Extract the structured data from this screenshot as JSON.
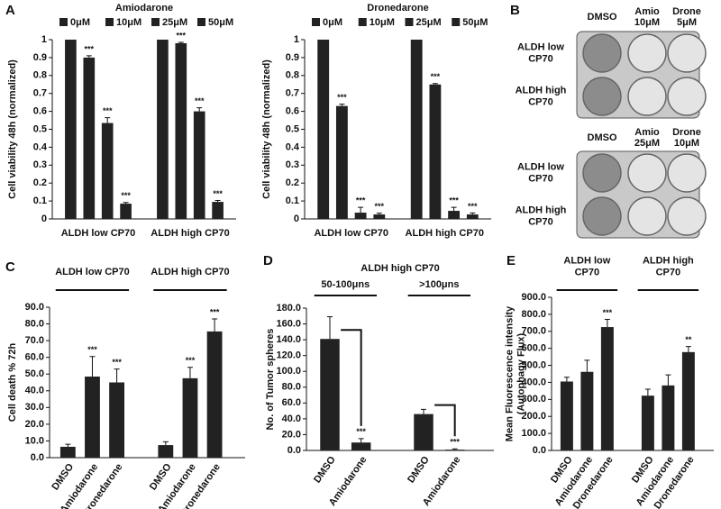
{
  "chart_data": [
    {
      "type": "bar",
      "panel": "A",
      "title": "Amiodarone",
      "y_label": "Cell viability 48h (normalized)",
      "categories": [
        "ALDH low CP70",
        "ALDH high CP70"
      ],
      "series": [
        {
          "name": "0μM",
          "color": "#222222",
          "values": [
            1,
            1
          ],
          "errors": [
            null,
            null
          ],
          "annotations": [
            null,
            null
          ]
        },
        {
          "name": "10μM",
          "color": "#222222",
          "values": [
            0.9,
            0.98
          ],
          "errors": [
            0.01,
            0.005
          ],
          "annotations": [
            "***",
            "***"
          ]
        },
        {
          "name": "25μM",
          "color": "#222222",
          "values": [
            0.535,
            0.6
          ],
          "errors": [
            0.03,
            0.02
          ],
          "annotations": [
            "***",
            "***"
          ]
        },
        {
          "name": "50μM",
          "color": "#222222",
          "values": [
            0.085,
            0.095
          ],
          "errors": [
            0.007,
            0.008
          ],
          "annotations": [
            "***",
            "***"
          ]
        }
      ],
      "ylim": [
        0,
        1
      ],
      "yticks": [
        0,
        0.1,
        0.2,
        0.3,
        0.4,
        0.5,
        0.6,
        0.7,
        0.8,
        0.9,
        1
      ]
    },
    {
      "type": "bar",
      "title": "Dronedarone",
      "y_label": "Cell viability 48h (normalized)",
      "categories": [
        "ALDH low CP70",
        "ALDH high CP70"
      ],
      "series": [
        {
          "name": "0μM",
          "color": "#222222",
          "values": [
            1,
            1
          ],
          "errors": [
            null,
            null
          ],
          "annotations": [
            null,
            null
          ]
        },
        {
          "name": "10μM",
          "color": "#222222",
          "values": [
            0.63,
            0.75
          ],
          "errors": [
            0.01,
            0.005
          ],
          "annotations": [
            "***",
            "***"
          ]
        },
        {
          "name": "25μM",
          "color": "#222222",
          "values": [
            0.035,
            0.045
          ],
          "errors": [
            0.03,
            0.02
          ],
          "annotations": [
            "***",
            "***"
          ]
        },
        {
          "name": "50μM",
          "color": "#222222",
          "values": [
            0.025,
            0.025
          ],
          "errors": [
            0.007,
            0.008
          ],
          "annotations": [
            "***",
            "***"
          ]
        }
      ],
      "ylim": [
        0,
        1
      ],
      "yticks": [
        0,
        0.1,
        0.2,
        0.3,
        0.4,
        0.5,
        0.6,
        0.7,
        0.8,
        0.9,
        1
      ]
    },
    {
      "type": "bar",
      "panel": "C",
      "y_label": "Cell death % 72h",
      "color": "#222222",
      "groups": [
        {
          "label": "ALDH low CP70",
          "categories": [
            "DMSO",
            "Amiodarone",
            "Dronedarone"
          ],
          "values": [
            6.5,
            48.5,
            45
          ],
          "errors": [
            1.5,
            12,
            8
          ],
          "annotations": [
            null,
            "***",
            "***"
          ]
        },
        {
          "label": "ALDH high CP70",
          "categories": [
            "DMSO",
            "Amiodarone",
            "Dronedarone"
          ],
          "values": [
            7.5,
            47.5,
            75.5
          ],
          "errors": [
            2,
            6.5,
            7.5
          ],
          "annotations": [
            null,
            "***",
            "***"
          ]
        }
      ],
      "ylim": [
        0,
        90
      ],
      "yticks": [
        {
          "value": 0,
          "label": "0.0"
        },
        {
          "value": 10,
          "label": "10.0"
        },
        {
          "value": 20,
          "label": "20.0"
        },
        {
          "value": 30,
          "label": "30.0"
        },
        {
          "value": 40,
          "label": "40.0"
        },
        {
          "value": 50,
          "label": "50.0"
        },
        {
          "value": 60,
          "label": "60.0"
        },
        {
          "value": 70,
          "label": "70.0"
        },
        {
          "value": 80,
          "label": "80.0"
        },
        {
          "value": 90,
          "label": "90.0"
        }
      ]
    },
    {
      "type": "bar",
      "panel": "D",
      "title": "ALDH high CP70",
      "y_label": "No. of Tumor spheres",
      "color": "#222222",
      "brackets": true,
      "groups": [
        {
          "label": "50-100μns",
          "categories": [
            "DMSO",
            "Amiodarone"
          ],
          "values": [
            141,
            10
          ],
          "errors": [
            28,
            5
          ],
          "annotations": [
            null,
            "***"
          ]
        },
        {
          "label": ">100μns",
          "categories": [
            "DMSO",
            "Amiodarone"
          ],
          "values": [
            46,
            1
          ],
          "errors": [
            6,
            1
          ],
          "annotations": [
            null,
            "***"
          ]
        }
      ],
      "ylim": [
        0,
        180
      ],
      "yticks": [
        {
          "value": 0,
          "label": "0.0"
        },
        {
          "value": 20,
          "label": "20.0"
        },
        {
          "value": 40,
          "label": "40.0"
        },
        {
          "value": 60,
          "label": "60.0"
        },
        {
          "value": 80,
          "label": "80.0"
        },
        {
          "value": 100,
          "label": "100.0"
        },
        {
          "value": 120,
          "label": "120.0"
        },
        {
          "value": 140,
          "label": "140.0"
        },
        {
          "value": 160,
          "label": "160.0"
        },
        {
          "value": 180,
          "label": "180.0"
        }
      ]
    },
    {
      "type": "bar",
      "panel": "E",
      "y_label": [
        "Mean Fluorescence intensity",
        "(Autophagy Flux)"
      ],
      "color": "#222222",
      "groups": [
        {
          "label": [
            "ALDH low",
            "CP70"
          ],
          "categories": [
            "DMSO",
            "Amiodarone",
            "Dronedarone"
          ],
          "values": [
            405,
            462,
            725
          ],
          "errors": [
            25,
            68,
            45
          ],
          "annotations": [
            null,
            null,
            "***"
          ]
        },
        {
          "label": [
            "ALDH high",
            "CP70"
          ],
          "categories": [
            "DMSO",
            "Amiodarone",
            "Dronedarone"
          ],
          "values": [
            322,
            382,
            578
          ],
          "errors": [
            38,
            62,
            33
          ],
          "annotations": [
            null,
            null,
            "**"
          ]
        }
      ],
      "ylim": [
        0,
        900
      ],
      "yticks": [
        {
          "value": 0,
          "label": "0.0"
        },
        {
          "value": 100,
          "label": "100.0"
        },
        {
          "value": 200,
          "label": "200.0"
        },
        {
          "value": 300,
          "label": "300.0"
        },
        {
          "value": 400,
          "label": "400.0"
        },
        {
          "value": 500,
          "label": "500.0"
        },
        {
          "value": 600,
          "label": "600.0"
        },
        {
          "value": 700,
          "label": "700.0"
        },
        {
          "value": 800,
          "label": "800.0"
        },
        {
          "value": 900,
          "label": "900.0"
        }
      ]
    }
  ],
  "panel_b": {
    "panel": "B",
    "plates": [
      {
        "columns": [
          [
            "DMSO"
          ],
          [
            "Amio",
            "10μM"
          ],
          [
            "Drone",
            "5μM"
          ]
        ],
        "rows": [
          [
            "ALDH low",
            "CP70"
          ],
          [
            "ALDH high",
            "CP70"
          ]
        ]
      },
      {
        "columns": [
          [
            "DMSO"
          ],
          [
            "Amio",
            "25μM"
          ],
          [
            "Drone",
            "10μM"
          ]
        ],
        "rows": [
          [
            "ALDH low",
            "CP70"
          ],
          [
            "ALDH high",
            "CP70"
          ]
        ]
      }
    ]
  }
}
